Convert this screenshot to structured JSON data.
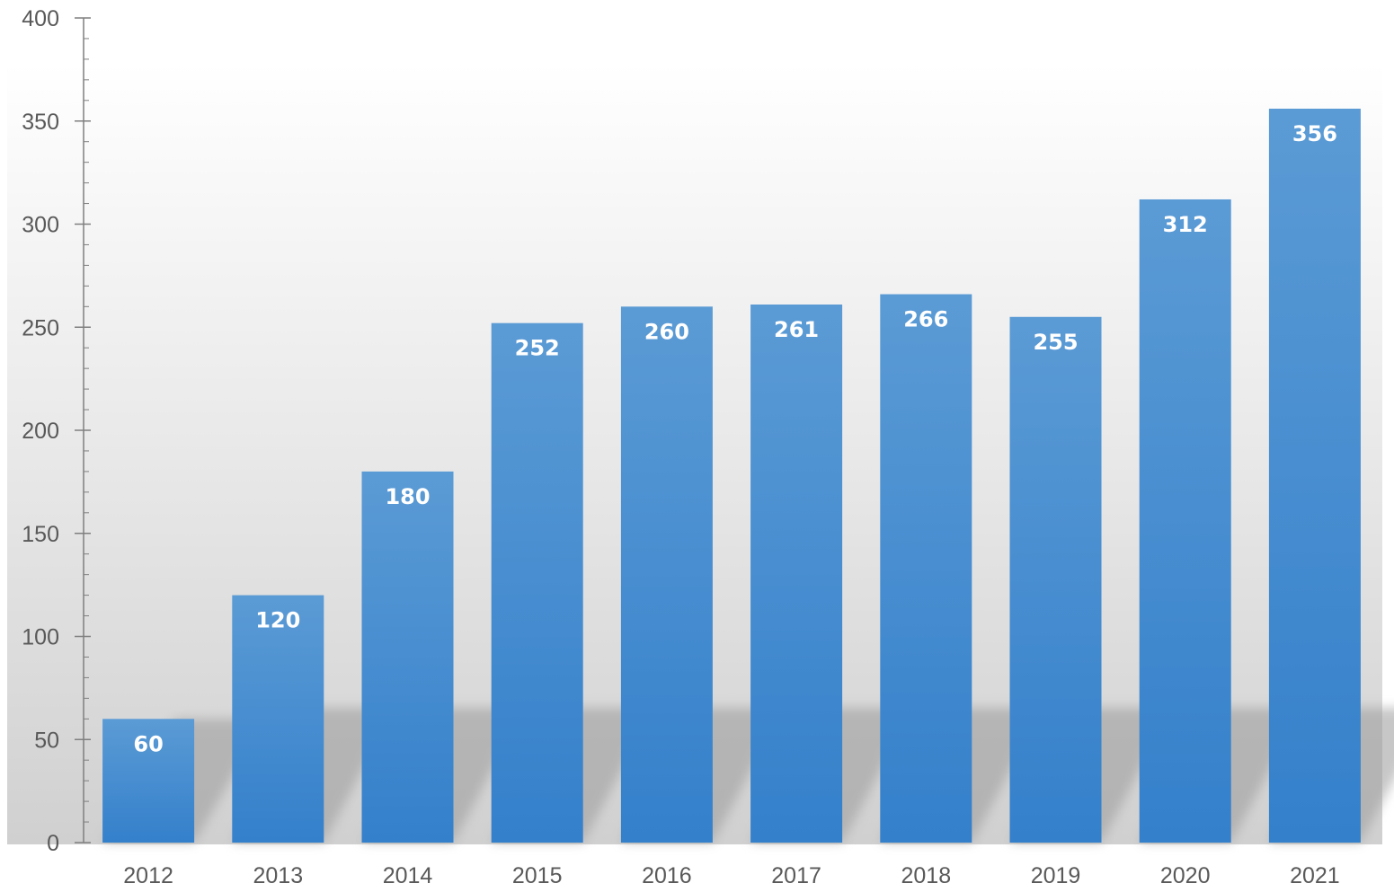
{
  "colors": {
    "bar_top": "#5b9bd5",
    "bar_bottom": "#3480cb",
    "axis": "#7f7f7f",
    "tick_text": "#595959",
    "data_label": "#ffffff",
    "backdrop_top": "#ffffff",
    "backdrop_bottom": "#d0d0d0",
    "shadow": "#9a9a9a"
  },
  "chart_data": {
    "type": "bar",
    "title": "",
    "xlabel": "",
    "ylabel": "",
    "categories": [
      "2012",
      "2013",
      "2014",
      "2015",
      "2016",
      "2017",
      "2018",
      "2019",
      "2020",
      "2021"
    ],
    "values": [
      60,
      120,
      180,
      252,
      260,
      261,
      266,
      255,
      312,
      356
    ],
    "data_labels": [
      "60",
      "120",
      "180",
      "252",
      "260",
      "261",
      "266",
      "255",
      "312",
      "356"
    ],
    "ylim": [
      0,
      400
    ],
    "y_ticks": [
      0,
      50,
      100,
      150,
      200,
      250,
      300,
      350,
      400
    ],
    "y_tick_labels": [
      "0",
      "50",
      "100",
      "150",
      "200",
      "250",
      "300",
      "350",
      "400"
    ],
    "y_minor_step": 10,
    "grid": false,
    "legend": "none",
    "data_labels_position": "inside-top",
    "style": "3d-shadow-backdrop"
  }
}
